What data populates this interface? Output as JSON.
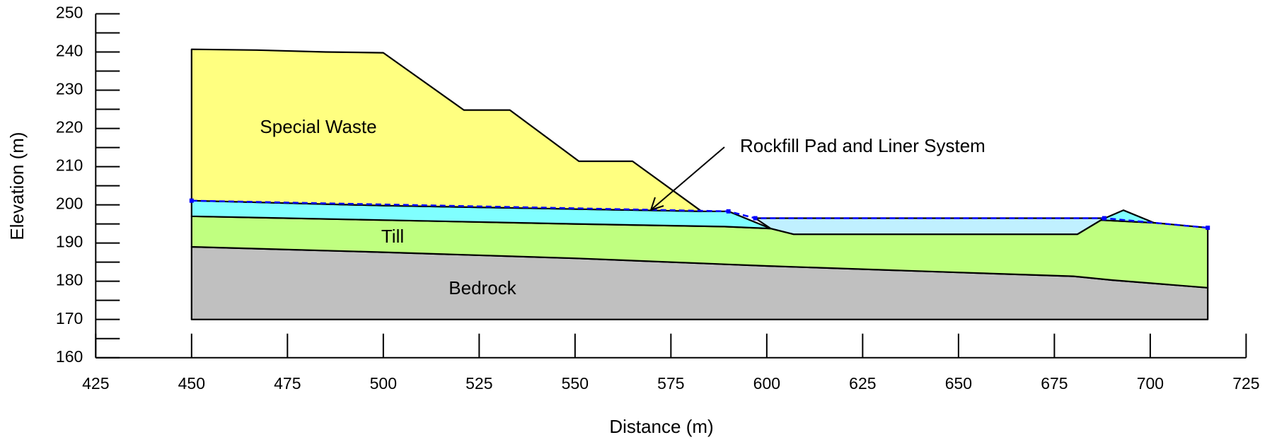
{
  "chart_data": {
    "type": "section",
    "xlabel": "Distance (m)",
    "ylabel": "Elevation (m)",
    "xlim": [
      425,
      725
    ],
    "ylim": [
      160,
      250
    ],
    "xticks": [
      425,
      450,
      475,
      500,
      525,
      550,
      575,
      600,
      625,
      650,
      675,
      700,
      725
    ],
    "yticks": [
      160,
      170,
      180,
      190,
      200,
      210,
      220,
      230,
      240,
      250
    ],
    "annotation": "Rockfill Pad and Liner System",
    "regions": [
      {
        "name": "Bedrock",
        "color": "#c0c0c0",
        "x": [
          450,
          500,
          550,
          600,
          650,
          680,
          690,
          715,
          715,
          450
        ],
        "y": [
          189,
          187.6,
          186,
          184,
          182.3,
          181.3,
          180.3,
          178.3,
          170,
          170
        ]
      },
      {
        "name": "Till",
        "color": "#c0ff80",
        "x": [
          450,
          500,
          550,
          589,
          601,
          607,
          681,
          687,
          701,
          715,
          715,
          690,
          680,
          650,
          600,
          550,
          500,
          450
        ],
        "y": [
          197,
          196,
          195,
          194.3,
          193.8,
          192.3,
          192.3,
          196,
          195.3,
          194,
          178.3,
          180.3,
          181.3,
          182.3,
          184,
          186,
          187.6,
          189
        ]
      },
      {
        "color": "#80ffff",
        "x": [
          450,
          500,
          583,
          590,
          601,
          589,
          550,
          500,
          450
        ],
        "y": [
          201.1,
          199.8,
          198.3,
          198.3,
          193.8,
          194.3,
          195,
          196,
          197
        ]
      },
      {
        "color": "#80ffff",
        "x": [
          687,
          693,
          701
        ],
        "y": [
          196,
          198.6,
          195.3
        ]
      },
      {
        "color": "#c0f0ff",
        "x": [
          597,
          688,
          681,
          607,
          601
        ],
        "y": [
          196.5,
          196.5,
          192.3,
          192.3,
          193.8
        ]
      },
      {
        "name": "Special Waste",
        "color": "#ffff80",
        "x": [
          450,
          467,
          485,
          500,
          521,
          533,
          551,
          565,
          583,
          500,
          450
        ],
        "y": [
          240.7,
          240.5,
          240,
          239.8,
          224.8,
          224.8,
          211.4,
          211.4,
          198.3,
          199.8,
          201.1
        ]
      }
    ],
    "lines": [
      {
        "color": "#0000ff",
        "dashed": true,
        "x": [
          450,
          590,
          597,
          688,
          715
        ],
        "y": [
          201.1,
          198.3,
          196.5,
          196.5,
          194
        ]
      }
    ]
  }
}
